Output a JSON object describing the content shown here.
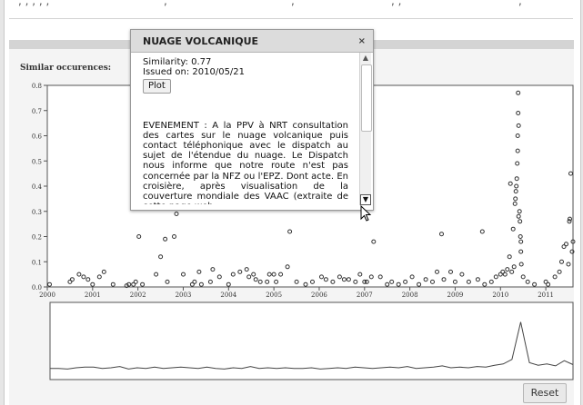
{
  "panel": {
    "similar_label": "Similar occurences:"
  },
  "popup": {
    "title": "NUAGE VOLCANIQUE",
    "close_symbol": "×",
    "similarity": "Similarity: 0.77",
    "issued": "Issued on: 2010/05/21",
    "plot_label": "Plot",
    "event_text": "EVENEMENT : A la PPV à NRT consultation des cartes sur le nuage volcanique puis contact téléphonique avec le dispatch au sujet de l'étendue du nuage. Le Dispatch nous informe que notre route n'est pas concernée par la NFZ ou l'EPZ. Dont acte. En croisière, après visualisation de la couverture mondiale des VAAC (extraite de cette page web :"
  },
  "reset_label": "Reset",
  "icons": {
    "close": "close-icon",
    "scroll_up": "scroll-up-icon",
    "scroll_down": "scroll-down-icon",
    "cursor": "mouse-pointer-icon"
  },
  "colors": {
    "point_stroke": "#333333",
    "axis": "#555555",
    "line": "#444444"
  },
  "chart_data": {
    "type": "scatter",
    "title": "",
    "xlabel": "",
    "ylabel": "",
    "xlim": [
      2000,
      2011.6
    ],
    "ylim": [
      0.0,
      0.8
    ],
    "y_ticks": [
      "0.0",
      "0.1",
      "0.2",
      "0.3",
      "0.4",
      "0.5",
      "0.6",
      "0.7",
      "0.8"
    ],
    "x_ticks": [
      "2000",
      "2001",
      "2002",
      "2003",
      "2004",
      "2005",
      "2006",
      "2007",
      "2008",
      "2009",
      "2010",
      "2011"
    ],
    "points": [
      [
        2000.05,
        0.01
      ],
      [
        2000.5,
        0.02
      ],
      [
        2000.55,
        0.03
      ],
      [
        2000.7,
        0.05
      ],
      [
        2000.8,
        0.04
      ],
      [
        2000.9,
        0.03
      ],
      [
        2001.0,
        0.01
      ],
      [
        2001.15,
        0.04
      ],
      [
        2001.25,
        0.06
      ],
      [
        2001.45,
        0.01
      ],
      [
        2001.75,
        0.005
      ],
      [
        2001.8,
        0.01
      ],
      [
        2001.9,
        0.01
      ],
      [
        2001.95,
        0.02
      ],
      [
        2002.0,
        0.35
      ],
      [
        2002.02,
        0.2
      ],
      [
        2002.1,
        0.01
      ],
      [
        2002.4,
        0.05
      ],
      [
        2002.5,
        0.12
      ],
      [
        2002.6,
        0.19
      ],
      [
        2002.65,
        0.02
      ],
      [
        2002.8,
        0.2
      ],
      [
        2002.85,
        0.29
      ],
      [
        2003.0,
        0.05
      ],
      [
        2003.2,
        0.01
      ],
      [
        2003.25,
        0.02
      ],
      [
        2003.35,
        0.06
      ],
      [
        2003.4,
        0.01
      ],
      [
        2003.6,
        0.02
      ],
      [
        2003.65,
        0.07
      ],
      [
        2003.8,
        0.04
      ],
      [
        2004.0,
        0.01
      ],
      [
        2004.1,
        0.05
      ],
      [
        2004.25,
        0.06
      ],
      [
        2004.4,
        0.07
      ],
      [
        2004.45,
        0.04
      ],
      [
        2004.55,
        0.05
      ],
      [
        2004.6,
        0.03
      ],
      [
        2004.7,
        0.02
      ],
      [
        2004.85,
        0.02
      ],
      [
        2004.9,
        0.05
      ],
      [
        2005.0,
        0.05
      ],
      [
        2005.05,
        0.02
      ],
      [
        2005.15,
        0.05
      ],
      [
        2005.3,
        0.08
      ],
      [
        2005.35,
        0.22
      ],
      [
        2005.5,
        0.02
      ],
      [
        2005.7,
        0.01
      ],
      [
        2005.85,
        0.02
      ],
      [
        2006.05,
        0.04
      ],
      [
        2006.15,
        0.03
      ],
      [
        2006.3,
        0.02
      ],
      [
        2006.45,
        0.04
      ],
      [
        2006.55,
        0.03
      ],
      [
        2006.65,
        0.03
      ],
      [
        2006.8,
        0.02
      ],
      [
        2006.9,
        0.05
      ],
      [
        2007.0,
        0.02
      ],
      [
        2007.05,
        0.02
      ],
      [
        2007.15,
        0.04
      ],
      [
        2007.2,
        0.18
      ],
      [
        2007.35,
        0.04
      ],
      [
        2007.5,
        0.01
      ],
      [
        2007.6,
        0.02
      ],
      [
        2007.75,
        0.01
      ],
      [
        2007.9,
        0.02
      ],
      [
        2008.05,
        0.04
      ],
      [
        2008.2,
        0.01
      ],
      [
        2008.35,
        0.03
      ],
      [
        2008.5,
        0.02
      ],
      [
        2008.6,
        0.06
      ],
      [
        2008.7,
        0.21
      ],
      [
        2008.75,
        0.03
      ],
      [
        2008.9,
        0.06
      ],
      [
        2009.0,
        0.02
      ],
      [
        2009.15,
        0.05
      ],
      [
        2009.3,
        0.02
      ],
      [
        2009.5,
        0.03
      ],
      [
        2009.6,
        0.22
      ],
      [
        2009.65,
        0.01
      ],
      [
        2009.8,
        0.02
      ],
      [
        2009.9,
        0.04
      ],
      [
        2010.0,
        0.05
      ],
      [
        2010.05,
        0.06
      ],
      [
        2010.1,
        0.05
      ],
      [
        2010.15,
        0.07
      ],
      [
        2010.2,
        0.12
      ],
      [
        2010.22,
        0.41
      ],
      [
        2010.25,
        0.06
      ],
      [
        2010.28,
        0.23
      ],
      [
        2010.3,
        0.08
      ],
      [
        2010.32,
        0.33
      ],
      [
        2010.33,
        0.35
      ],
      [
        2010.34,
        0.38
      ],
      [
        2010.35,
        0.4
      ],
      [
        2010.36,
        0.43
      ],
      [
        2010.37,
        0.49
      ],
      [
        2010.38,
        0.54
      ],
      [
        2010.38,
        0.6
      ],
      [
        2010.39,
        0.77
      ],
      [
        2010.39,
        0.69
      ],
      [
        2010.4,
        0.64
      ],
      [
        2010.4,
        0.28
      ],
      [
        2010.42,
        0.3
      ],
      [
        2010.43,
        0.26
      ],
      [
        2010.44,
        0.2
      ],
      [
        2010.45,
        0.18
      ],
      [
        2010.45,
        0.14
      ],
      [
        2010.46,
        0.09
      ],
      [
        2010.5,
        0.04
      ],
      [
        2010.6,
        0.02
      ],
      [
        2010.75,
        0.01
      ],
      [
        2011.0,
        0.02
      ],
      [
        2011.05,
        0.01
      ],
      [
        2011.2,
        0.04
      ],
      [
        2011.3,
        0.06
      ],
      [
        2011.35,
        0.1
      ],
      [
        2011.4,
        0.16
      ],
      [
        2011.45,
        0.17
      ],
      [
        2011.5,
        0.09
      ],
      [
        2011.52,
        0.26
      ],
      [
        2011.53,
        0.27
      ],
      [
        2011.55,
        0.45
      ],
      [
        2011.58,
        0.14
      ],
      [
        2011.6,
        0.18
      ]
    ],
    "overview_series": [
      0.06,
      0.06,
      0.05,
      0.07,
      0.08,
      0.08,
      0.06,
      0.07,
      0.09,
      0.05,
      0.07,
      0.06,
      0.08,
      0.06,
      0.07,
      0.08,
      0.07,
      0.06,
      0.08,
      0.06,
      0.05,
      0.07,
      0.06,
      0.09,
      0.06,
      0.07,
      0.06,
      0.07,
      0.06,
      0.06,
      0.07,
      0.05,
      0.06,
      0.07,
      0.06,
      0.08,
      0.07,
      0.06,
      0.07,
      0.08,
      0.07,
      0.09,
      0.06,
      0.07,
      0.08,
      0.1,
      0.07,
      0.08,
      0.07,
      0.09,
      0.08,
      0.11,
      0.13,
      0.2,
      0.78,
      0.15,
      0.11,
      0.13,
      0.1,
      0.18,
      0.12
    ]
  }
}
